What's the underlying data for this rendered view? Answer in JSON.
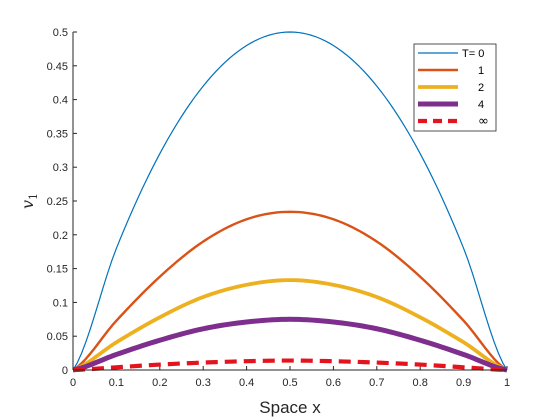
{
  "chart_data": {
    "type": "line",
    "xlabel": "Space x",
    "ylabel": "v",
    "ylabel_subscript": "1",
    "xlim": [
      0,
      1
    ],
    "ylim": [
      0,
      0.5
    ],
    "xticks": [
      0,
      0.1,
      0.2,
      0.3,
      0.4,
      0.5,
      0.6,
      0.7,
      0.8,
      0.9,
      1
    ],
    "xtick_labels": [
      "0",
      "0.1",
      "0.2",
      "0.3",
      "0.4",
      "0.5",
      "0.6",
      "0.7",
      "0.8",
      "0.9",
      "1"
    ],
    "yticks": [
      0,
      0.05,
      0.1,
      0.15,
      0.2,
      0.25,
      0.3,
      0.35,
      0.4,
      0.45,
      0.5
    ],
    "ytick_labels": [
      "0",
      "0.05",
      "0.1",
      "0.15",
      "0.2",
      "0.25",
      "0.3",
      "0.35",
      "0.4",
      "0.45",
      "0.5"
    ],
    "grid": false,
    "legend_position": "top-right",
    "series": [
      {
        "name": "T= 0",
        "color": "#0072BD",
        "line_style": "solid",
        "x": [
          0,
          0.1,
          0.2,
          0.3,
          0.4,
          0.5,
          0.6,
          0.7,
          0.8,
          0.9,
          1
        ],
        "values": [
          0,
          0.18,
          0.32,
          0.42,
          0.48,
          0.5,
          0.48,
          0.42,
          0.32,
          0.18,
          0
        ]
      },
      {
        "name": "1",
        "color": "#D95319",
        "line_style": "solid",
        "x": [
          0,
          0.1,
          0.2,
          0.3,
          0.4,
          0.5,
          0.6,
          0.7,
          0.8,
          0.9,
          1
        ],
        "values": [
          0,
          0.073,
          0.138,
          0.19,
          0.223,
          0.234,
          0.223,
          0.19,
          0.138,
          0.073,
          0
        ]
      },
      {
        "name": "2",
        "color": "#EDB120",
        "line_style": "solid",
        "x": [
          0,
          0.1,
          0.2,
          0.3,
          0.4,
          0.5,
          0.6,
          0.7,
          0.8,
          0.9,
          1
        ],
        "values": [
          0,
          0.041,
          0.078,
          0.108,
          0.126,
          0.133,
          0.126,
          0.108,
          0.078,
          0.041,
          0
        ]
      },
      {
        "name": "4",
        "color": "#7E2F8E",
        "line_style": "solid",
        "x": [
          0,
          0.1,
          0.2,
          0.3,
          0.4,
          0.5,
          0.6,
          0.7,
          0.8,
          0.9,
          1
        ],
        "values": [
          0,
          0.023,
          0.044,
          0.061,
          0.071,
          0.075,
          0.071,
          0.061,
          0.044,
          0.023,
          0
        ]
      },
      {
        "name": "∞",
        "color": "#E3141E",
        "line_style": "dashed",
        "x": [
          0,
          0.1,
          0.2,
          0.3,
          0.4,
          0.5,
          0.6,
          0.7,
          0.8,
          0.9,
          1
        ],
        "values": [
          0,
          0.004,
          0.008,
          0.011,
          0.013,
          0.014,
          0.013,
          0.011,
          0.008,
          0.004,
          0
        ]
      }
    ]
  }
}
